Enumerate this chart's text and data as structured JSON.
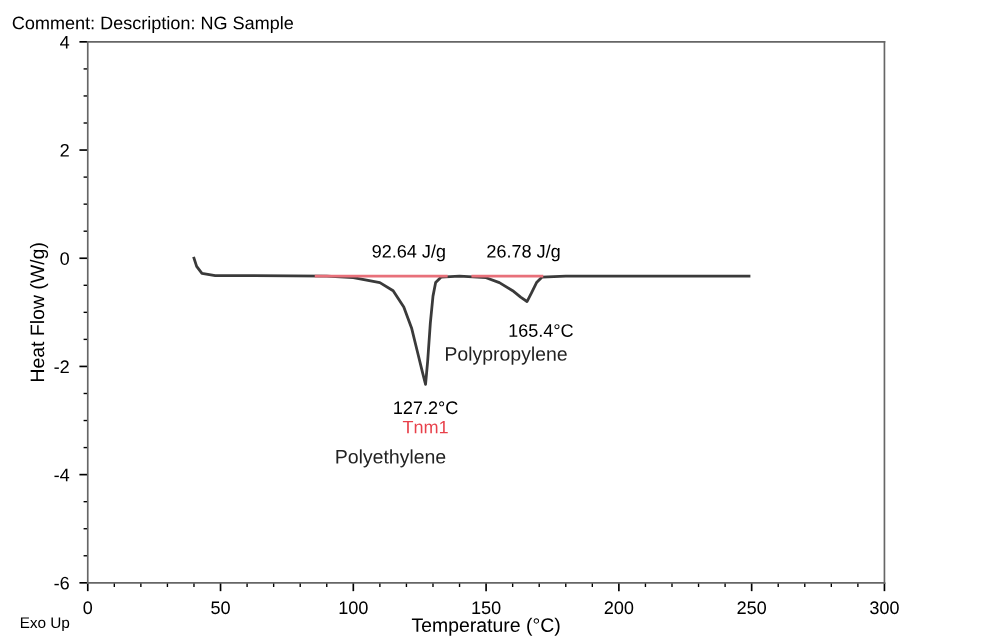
{
  "chart_data": {
    "type": "line",
    "title": "Comment: Description: NG Sample",
    "xlabel": "Temperature (°C)",
    "ylabel": "Heat Flow (W/g)",
    "xlim": [
      0,
      300
    ],
    "ylim": [
      -6,
      4
    ],
    "xticks": [
      0,
      50,
      100,
      150,
      200,
      250,
      300
    ],
    "yticks": [
      -6,
      -4,
      -2,
      0,
      2,
      4
    ],
    "grid": false,
    "legend": false,
    "marker": "none",
    "line_style": "solid",
    "series": [
      {
        "color": "#3a3a3a",
        "x": [
          40,
          41,
          43,
          48,
          60,
          90,
          100,
          110,
          115,
          119,
          122,
          124,
          126,
          127.2,
          128,
          129,
          130,
          131,
          133,
          140,
          150,
          155,
          160,
          163,
          165.4,
          167,
          169,
          171,
          180,
          249
        ],
        "values": [
          0.0,
          -0.15,
          -0.28,
          -0.32,
          -0.32,
          -0.33,
          -0.36,
          -0.45,
          -0.6,
          -0.9,
          -1.3,
          -1.7,
          -2.1,
          -2.33,
          -1.9,
          -1.2,
          -0.7,
          -0.45,
          -0.35,
          -0.33,
          -0.36,
          -0.45,
          -0.6,
          -0.72,
          -0.8,
          -0.65,
          -0.45,
          -0.35,
          -0.33,
          -0.33
        ]
      },
      {
        "color": "#e8707a",
        "x": [
          86,
          135
        ],
        "values": [
          -0.33,
          -0.33
        ]
      },
      {
        "color": "#e8707a",
        "x": [
          145,
          171
        ],
        "values": [
          -0.33,
          -0.33
        ]
      }
    ],
    "annotations": [
      "92.64 J/g",
      "26.78 J/g",
      {
        "text": "165.4°C",
        "x": 165.4,
        "y": -0.8
      },
      "Polypropylene",
      {
        "text": "127.2°C",
        "x": 127.2,
        "y": -2.33
      },
      "Tnm1",
      "Polyethylene",
      "Exo Up"
    ]
  }
}
